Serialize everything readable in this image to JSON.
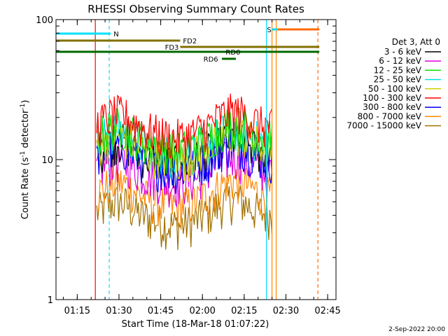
{
  "chart_data": {
    "type": "line",
    "title": "RHESSI Observing Summary Count Rates",
    "xlabel": "Start Time (18-Mar-18 01:07:22)",
    "ylabel_main": "Count Rate (s",
    "ylabel_sup1": "-1",
    "ylabel_mid": " detector",
    "ylabel_sup2": "-1",
    "ylabel_end": ")",
    "y_scale": "log",
    "ylim": [
      1,
      100
    ],
    "xlim": [
      "01:07:22",
      "02:48:00"
    ],
    "x_ticks": [
      "01:15",
      "01:30",
      "01:45",
      "02:00",
      "02:15",
      "02:30",
      "02:45"
    ],
    "y_ticks": [
      "1",
      "10",
      "100"
    ],
    "legend_header": "Det 3, Att 0",
    "legend_placement": "right",
    "series": [
      {
        "name": "3 - 6 keV",
        "color": "#000000",
        "level": 11.0
      },
      {
        "name": "6 - 12 keV",
        "color": "#e000e0",
        "level": 8.0
      },
      {
        "name": "12 - 25 keV",
        "color": "#00e000",
        "level": 14.0
      },
      {
        "name": "25 - 50 keV",
        "color": "#00e0e0",
        "level": 13.0
      },
      {
        "name": "50 - 100 keV",
        "color": "#d0d000",
        "level": 12.0
      },
      {
        "name": "100 - 300 keV",
        "color": "#ff0000",
        "level": 17.0
      },
      {
        "name": "300 - 800 keV",
        "color": "#0000ff",
        "level": 10.0
      },
      {
        "name": "800 - 7000 keV",
        "color": "#ff8800",
        "level": 5.5
      },
      {
        "name": "7000 - 15000 keV",
        "color": "#a07000",
        "level": 4.0
      }
    ],
    "data_window": {
      "start": "01:22:00",
      "end": "02:25:00"
    },
    "flags": [
      {
        "label": "N",
        "color": "#00e0ff",
        "start": "01:07:22",
        "end": "01:27:00",
        "label_at": "01:29:00"
      },
      {
        "label": "S",
        "color": "#00e0ff",
        "start": "02:25:00",
        "end": "02:42:00",
        "label_at": "02:24:00"
      },
      {
        "label": "",
        "color": "#ff6a00",
        "start": "02:27:00",
        "end": "02:42:00",
        "label_at": ""
      },
      {
        "label": "FD2",
        "color": "#807000",
        "start": "01:07:22",
        "end": "01:52:00",
        "label_at": "01:55:30"
      },
      {
        "label": "FD3",
        "color": "#807000",
        "start": "01:52:00",
        "end": "02:42:00",
        "label_at": "01:49:00"
      },
      {
        "label": "RD0",
        "color": "#006a00",
        "start": "01:07:22",
        "end": "02:42:00",
        "label_at": "02:11:00"
      },
      {
        "label": "RD6",
        "color": "#006a00",
        "start": "02:07:00",
        "end": "02:12:00",
        "label_at": "02:03:00"
      }
    ],
    "vlines": [
      {
        "time": "01:26:30",
        "color": "#00e0ff",
        "style": "dashed"
      },
      {
        "time": "02:23:00",
        "color": "#00e0ff",
        "style": "solid"
      },
      {
        "time": "02:25:00",
        "color": "#ff8800",
        "style": "solid"
      },
      {
        "time": "02:26:30",
        "color": "#ff8800",
        "style": "solid"
      },
      {
        "time": "02:41:30",
        "color": "#ff6a00",
        "style": "dashed"
      },
      {
        "time": "01:21:30",
        "color": "#ff0000",
        "style": "solid"
      }
    ],
    "grid": false
  },
  "footer": {
    "date": "2-Sep-2022 20:00"
  }
}
